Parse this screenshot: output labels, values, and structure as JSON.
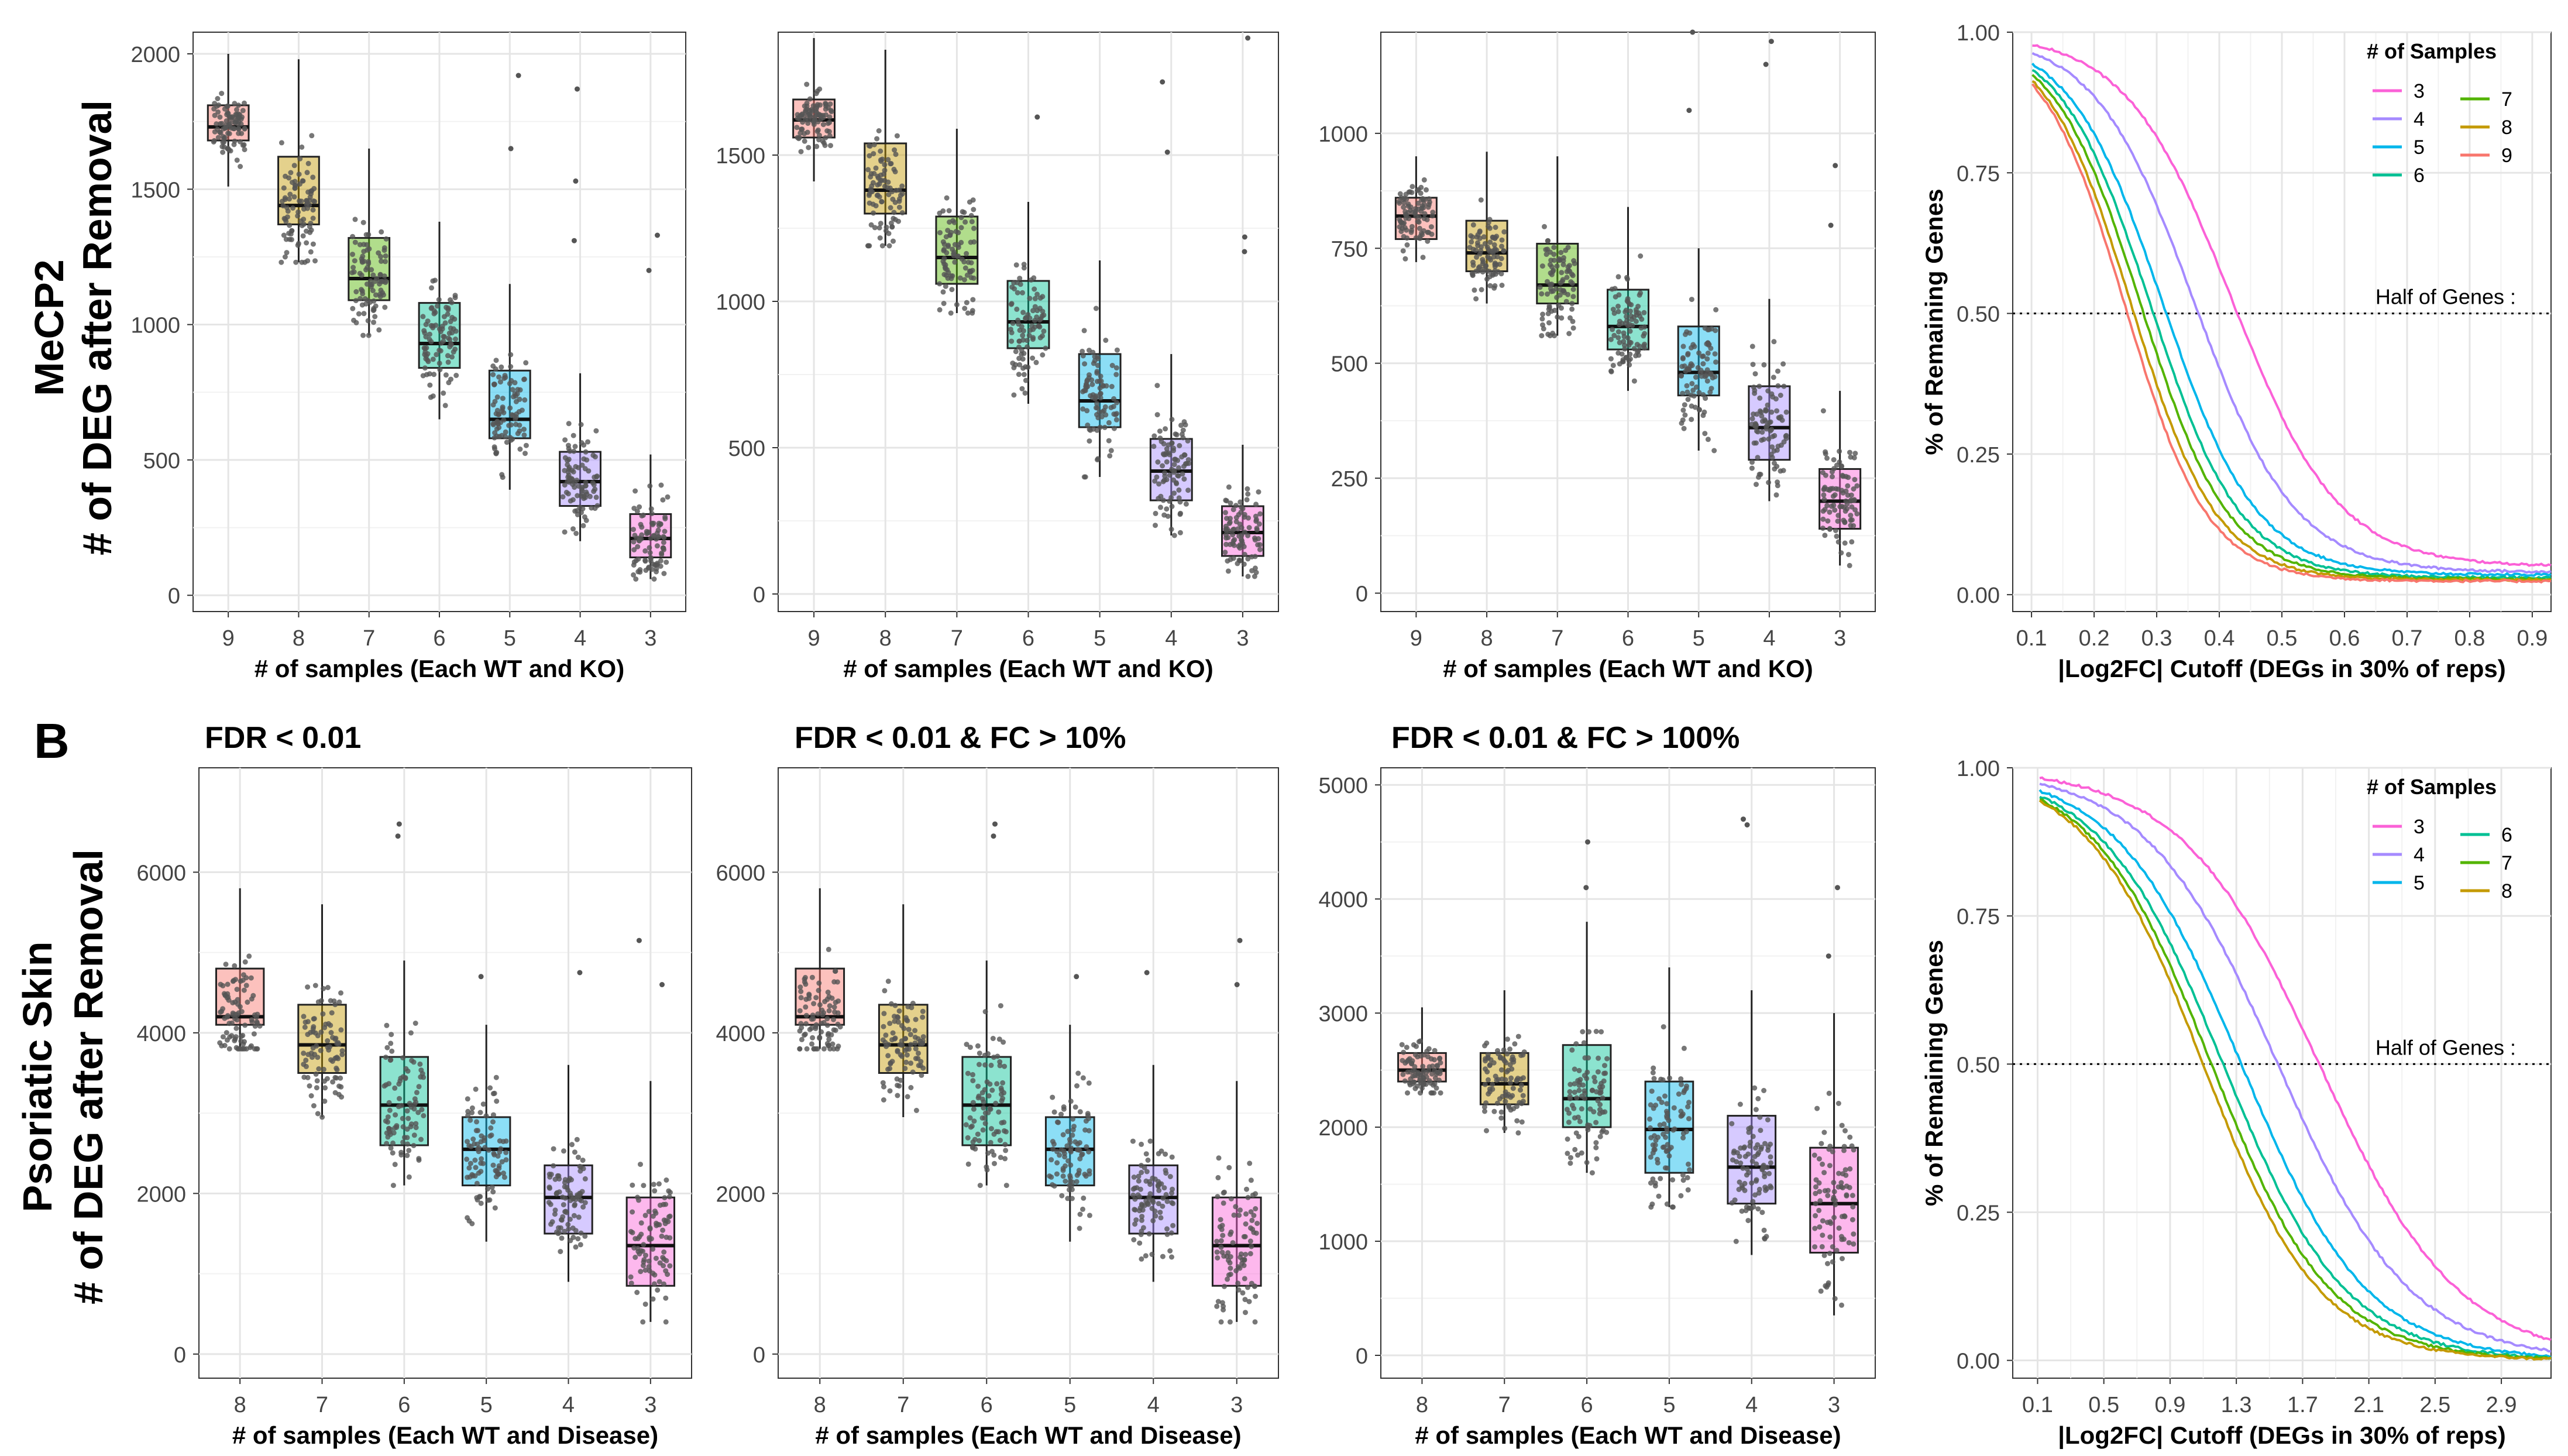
{
  "figure": {
    "row_a": {
      "row_label": "MeCP2",
      "ylabel": "# of DEG after Removal"
    },
    "row_b": {
      "panel_letter": "B",
      "row_label": "Psoriatic Skin",
      "ylabel": "# of DEG after Removal"
    }
  },
  "colors": {
    "box_fills_mecp2": [
      "#F8766D",
      "#C49A00",
      "#53B400",
      "#00C094",
      "#00B6EB",
      "#A58AFF",
      "#FB61D7"
    ],
    "box_fills_psoriatic": [
      "#F8766D",
      "#C49A00",
      "#00C094",
      "#00B6EB",
      "#A58AFF",
      "#FB61D7"
    ],
    "curve_colors": {
      "3": "#FB61D7",
      "4": "#A58AFF",
      "5": "#00B6EB",
      "6": "#00C094",
      "7": "#53B400",
      "8": "#C49A00",
      "9": "#F8766D"
    },
    "points": "#555555",
    "grid": "#EBEBEB"
  },
  "chart_data": [
    {
      "type": "box",
      "id": "a1",
      "title": "",
      "xlabel": "# of samples (Each WT and KO)",
      "ylabel": "",
      "categories": [
        "9",
        "8",
        "7",
        "6",
        "5",
        "4",
        "3"
      ],
      "ylim": [
        -60,
        2080
      ],
      "yticks": [
        0,
        500,
        1000,
        1500,
        2000
      ],
      "boxes": [
        {
          "q1": 1680,
          "median": 1730,
          "q3": 1810,
          "whisker_low": 1510,
          "whisker_high": 2000
        },
        {
          "q1": 1370,
          "median": 1440,
          "q3": 1620,
          "whisker_low": 1230,
          "whisker_high": 1980
        },
        {
          "q1": 1090,
          "median": 1170,
          "q3": 1320,
          "whisker_low": 960,
          "whisker_high": 1650
        },
        {
          "q1": 840,
          "median": 930,
          "q3": 1080,
          "whisker_low": 650,
          "whisker_high": 1380
        },
        {
          "q1": 580,
          "median": 650,
          "q3": 830,
          "whisker_low": 390,
          "whisker_high": 1150
        },
        {
          "q1": 330,
          "median": 420,
          "q3": 530,
          "whisker_low": 200,
          "whisker_high": 820
        },
        {
          "q1": 140,
          "median": 210,
          "q3": 300,
          "whisker_low": 60,
          "whisker_high": 520
        }
      ],
      "outliers": [
        [
          4,
          1650
        ],
        [
          4,
          1920
        ],
        [
          5,
          1310
        ],
        [
          5,
          1530
        ],
        [
          5,
          1870
        ],
        [
          6,
          1200
        ],
        [
          6,
          1330
        ]
      ]
    },
    {
      "type": "box",
      "id": "a2",
      "title": "",
      "xlabel": "# of samples (Each WT and KO)",
      "ylabel": "",
      "categories": [
        "9",
        "8",
        "7",
        "6",
        "5",
        "4",
        "3"
      ],
      "ylim": [
        -60,
        1920
      ],
      "yticks": [
        0,
        500,
        1000,
        1500
      ],
      "boxes": [
        {
          "q1": 1560,
          "median": 1620,
          "q3": 1690,
          "whisker_low": 1410,
          "whisker_high": 1900
        },
        {
          "q1": 1300,
          "median": 1380,
          "q3": 1540,
          "whisker_low": 1190,
          "whisker_high": 1860
        },
        {
          "q1": 1060,
          "median": 1150,
          "q3": 1290,
          "whisker_low": 960,
          "whisker_high": 1590
        },
        {
          "q1": 840,
          "median": 930,
          "q3": 1070,
          "whisker_low": 650,
          "whisker_high": 1340
        },
        {
          "q1": 570,
          "median": 660,
          "q3": 820,
          "whisker_low": 400,
          "whisker_high": 1140
        },
        {
          "q1": 320,
          "median": 420,
          "q3": 530,
          "whisker_low": 200,
          "whisker_high": 820
        },
        {
          "q1": 130,
          "median": 210,
          "q3": 300,
          "whisker_low": 60,
          "whisker_high": 510
        }
      ],
      "outliers": [
        [
          3,
          1630
        ],
        [
          5,
          1510
        ],
        [
          5,
          1750
        ],
        [
          6,
          1170
        ],
        [
          6,
          1220
        ],
        [
          6,
          1900
        ]
      ]
    },
    {
      "type": "box",
      "id": "a3",
      "title": "",
      "xlabel": "# of samples (Each WT and KO)",
      "ylabel": "",
      "categories": [
        "9",
        "8",
        "7",
        "6",
        "5",
        "4",
        "3"
      ],
      "ylim": [
        -40,
        1220
      ],
      "yticks": [
        0,
        250,
        500,
        750,
        1000
      ],
      "boxes": [
        {
          "q1": 770,
          "median": 820,
          "q3": 860,
          "whisker_low": 720,
          "whisker_high": 950
        },
        {
          "q1": 700,
          "median": 740,
          "q3": 810,
          "whisker_low": 630,
          "whisker_high": 960
        },
        {
          "q1": 630,
          "median": 670,
          "q3": 760,
          "whisker_low": 560,
          "whisker_high": 950
        },
        {
          "q1": 530,
          "median": 580,
          "q3": 660,
          "whisker_low": 440,
          "whisker_high": 840
        },
        {
          "q1": 430,
          "median": 480,
          "q3": 580,
          "whisker_low": 310,
          "whisker_high": 750
        },
        {
          "q1": 290,
          "median": 360,
          "q3": 450,
          "whisker_low": 200,
          "whisker_high": 640
        },
        {
          "q1": 140,
          "median": 200,
          "q3": 270,
          "whisker_low": 60,
          "whisker_high": 440
        }
      ],
      "outliers": [
        [
          4,
          1050
        ],
        [
          4,
          1220
        ],
        [
          5,
          1150
        ],
        [
          5,
          1200
        ],
        [
          6,
          930
        ],
        [
          6,
          800
        ]
      ]
    },
    {
      "type": "line",
      "id": "a4",
      "title": "",
      "xlabel": "|Log2FC| Cutoff (DEGs in 30% of reps)",
      "ylabel": "% of Remaining Genes",
      "xlim": [
        0.07,
        0.93
      ],
      "ylim": [
        -0.03,
        1.0
      ],
      "xticks": [
        0.1,
        0.2,
        0.3,
        0.4,
        0.5,
        0.6,
        0.7,
        0.8,
        0.9
      ],
      "yticks": [
        0.0,
        0.25,
        0.5,
        0.75,
        1.0
      ],
      "legend_title": "# of Samples",
      "legend_placement": "top-right",
      "hline": {
        "y": 0.5,
        "label": "Half of Genes :"
      },
      "series": [
        {
          "name": "3",
          "x50": 0.42,
          "width": 0.085,
          "tail": 0.05
        },
        {
          "name": "4",
          "x50": 0.36,
          "width": 0.08,
          "tail": 0.04
        },
        {
          "name": "5",
          "x50": 0.31,
          "width": 0.075,
          "tail": 0.035
        },
        {
          "name": "6",
          "x50": 0.29,
          "width": 0.072,
          "tail": 0.03
        },
        {
          "name": "7",
          "x50": 0.275,
          "width": 0.07,
          "tail": 0.028
        },
        {
          "name": "8",
          "x50": 0.26,
          "width": 0.068,
          "tail": 0.026
        },
        {
          "name": "9",
          "x50": 0.25,
          "width": 0.066,
          "tail": 0.024
        }
      ]
    },
    {
      "type": "box",
      "id": "b1",
      "title": "FDR < 0.01",
      "xlabel": "# of samples (Each WT and Disease)",
      "ylabel": "",
      "categories": [
        "8",
        "7",
        "6",
        "5",
        "4",
        "3"
      ],
      "ylim": [
        -300,
        7300
      ],
      "yticks": [
        0,
        2000,
        4000,
        6000
      ],
      "boxes": [
        {
          "q1": 4100,
          "median": 4200,
          "q3": 4800,
          "whisker_low": 3800,
          "whisker_high": 5800
        },
        {
          "q1": 3500,
          "median": 3850,
          "q3": 4350,
          "whisker_low": 2950,
          "whisker_high": 5600
        },
        {
          "q1": 2600,
          "median": 3100,
          "q3": 3700,
          "whisker_low": 2100,
          "whisker_high": 4900
        },
        {
          "q1": 2100,
          "median": 2550,
          "q3": 2950,
          "whisker_low": 1400,
          "whisker_high": 4100
        },
        {
          "q1": 1500,
          "median": 1950,
          "q3": 2350,
          "whisker_low": 900,
          "whisker_high": 3600
        },
        {
          "q1": 850,
          "median": 1350,
          "q3": 1950,
          "whisker_low": 400,
          "whisker_high": 3400
        }
      ],
      "outliers": [
        [
          2,
          6450
        ],
        [
          2,
          6600
        ],
        [
          3,
          4700
        ],
        [
          4,
          4750
        ],
        [
          5,
          5150
        ],
        [
          5,
          4600
        ]
      ]
    },
    {
      "type": "box",
      "id": "b2",
      "title": "FDR < 0.01 & FC > 10%",
      "xlabel": "# of samples (Each WT and Disease)",
      "ylabel": "",
      "categories": [
        "8",
        "7",
        "6",
        "5",
        "4",
        "3"
      ],
      "ylim": [
        -300,
        7300
      ],
      "yticks": [
        0,
        2000,
        4000,
        6000
      ],
      "boxes": [
        {
          "q1": 4100,
          "median": 4200,
          "q3": 4800,
          "whisker_low": 3800,
          "whisker_high": 5800
        },
        {
          "q1": 3500,
          "median": 3850,
          "q3": 4350,
          "whisker_low": 2950,
          "whisker_high": 5600
        },
        {
          "q1": 2600,
          "median": 3100,
          "q3": 3700,
          "whisker_low": 2100,
          "whisker_high": 4900
        },
        {
          "q1": 2100,
          "median": 2550,
          "q3": 2950,
          "whisker_low": 1400,
          "whisker_high": 4100
        },
        {
          "q1": 1500,
          "median": 1950,
          "q3": 2350,
          "whisker_low": 900,
          "whisker_high": 3600
        },
        {
          "q1": 850,
          "median": 1350,
          "q3": 1950,
          "whisker_low": 400,
          "whisker_high": 3400
        }
      ],
      "outliers": [
        [
          2,
          6450
        ],
        [
          2,
          6600
        ],
        [
          3,
          4700
        ],
        [
          4,
          4750
        ],
        [
          5,
          5150
        ],
        [
          5,
          4600
        ]
      ]
    },
    {
      "type": "box",
      "id": "b3",
      "title": "FDR < 0.01 & FC > 100%",
      "xlabel": "# of samples (Each WT and Disease)",
      "ylabel": "",
      "categories": [
        "8",
        "7",
        "6",
        "5",
        "4",
        "3"
      ],
      "ylim": [
        -200,
        5150
      ],
      "yticks": [
        0,
        1000,
        2000,
        3000,
        4000,
        5000
      ],
      "boxes": [
        {
          "q1": 2400,
          "median": 2500,
          "q3": 2650,
          "whisker_low": 2300,
          "whisker_high": 3050
        },
        {
          "q1": 2200,
          "median": 2380,
          "q3": 2650,
          "whisker_low": 1950,
          "whisker_high": 3200
        },
        {
          "q1": 2000,
          "median": 2250,
          "q3": 2720,
          "whisker_low": 1600,
          "whisker_high": 3800
        },
        {
          "q1": 1600,
          "median": 1980,
          "q3": 2400,
          "whisker_low": 1300,
          "whisker_high": 3400
        },
        {
          "q1": 1330,
          "median": 1650,
          "q3": 2100,
          "whisker_low": 880,
          "whisker_high": 3200
        },
        {
          "q1": 900,
          "median": 1330,
          "q3": 1820,
          "whisker_low": 350,
          "whisker_high": 3000
        }
      ],
      "outliers": [
        [
          2,
          4500
        ],
        [
          2,
          4100
        ],
        [
          4,
          4650
        ],
        [
          4,
          4700
        ],
        [
          5,
          4100
        ],
        [
          5,
          3500
        ]
      ]
    },
    {
      "type": "line",
      "id": "b4",
      "title": "",
      "xlabel": "|Log2FC| Cutoff (DEGs in 30% of reps)",
      "ylabel": "% of Remaining Genes",
      "xlim": [
        -0.05,
        3.2
      ],
      "ylim": [
        -0.03,
        1.0
      ],
      "xticks": [
        0.1,
        0.5,
        0.9,
        1.3,
        1.7,
        2.1,
        2.5,
        2.9
      ],
      "yticks": [
        0.0,
        0.25,
        0.5,
        0.75,
        1.0
      ],
      "legend_title": "# of Samples",
      "legend_placement": "top-right",
      "hline": {
        "y": 0.5,
        "label": "Half of Genes :"
      },
      "series": [
        {
          "name": "3",
          "x50": 1.8,
          "width": 0.42,
          "tail": 0.0
        },
        {
          "name": "4",
          "x50": 1.55,
          "width": 0.4,
          "tail": 0.0
        },
        {
          "name": "5",
          "x50": 1.33,
          "width": 0.38,
          "tail": 0.0
        },
        {
          "name": "6",
          "x50": 1.22,
          "width": 0.37,
          "tail": 0.0
        },
        {
          "name": "7",
          "x50": 1.15,
          "width": 0.36,
          "tail": 0.0
        },
        {
          "name": "8",
          "x50": 1.1,
          "width": 0.35,
          "tail": 0.0
        }
      ]
    }
  ]
}
